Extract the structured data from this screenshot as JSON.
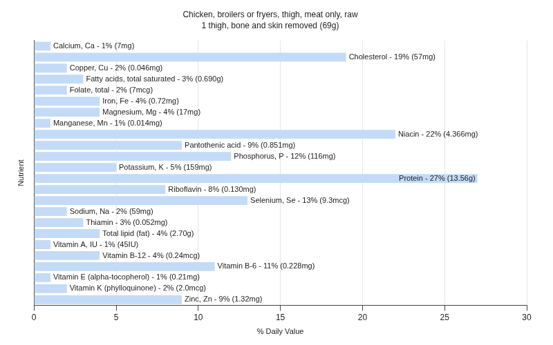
{
  "chart_data": {
    "type": "bar",
    "orientation": "horizontal",
    "title": "Chicken, broilers or fryers, thigh, meat only, raw",
    "subtitle": "1 thigh, bone and skin removed (69g)",
    "x_label": "% Daily Value",
    "y_label": "Nutrient",
    "categories": [
      null,
      null,
      null,
      null,
      null,
      null,
      null,
      null,
      null,
      null,
      null,
      null,
      null,
      null,
      null,
      null,
      null,
      null,
      null,
      null,
      null,
      null,
      null,
      null
    ],
    "values": [
      1,
      19,
      2,
      3,
      2,
      4,
      4,
      1,
      22,
      9,
      12,
      5,
      27,
      8,
      13,
      2,
      3,
      4,
      1,
      4,
      11,
      1,
      2,
      9
    ],
    "value_labels": [
      "Calcium, Ca - 1% (7mg)",
      "Cholesterol - 19% (57mg)",
      "Copper, Cu - 2% (0.046mg)",
      "Fatty acids, total saturated - 3% (0.690g)",
      "Folate, total - 2% (7mcg)",
      "Iron, Fe - 4% (0.72mg)",
      "Magnesium, Mg - 4% (17mg)",
      "Manganese, Mn - 1% (0.014mg)",
      "Niacin - 22% (4.366mg)",
      "Pantothenic acid - 9% (0.851mg)",
      "Phosphorus, P - 12% (116mg)",
      "Potassium, K - 5% (159mg)",
      "Protein - 27% (13.56g)",
      "Riboflavin - 8% (0.130mg)",
      "Selenium, Se - 13% (9.3mcg)",
      "Sodium, Na - 2% (59mg)",
      "Thiamin - 3% (0.052mg)",
      "Total lipid (fat) - 4% (2.70g)",
      "Vitamin A, IU - 1% (45IU)",
      "Vitamin B-12 - 4% (0.24mcg)",
      "Vitamin B-6 - 11% (0.228mg)",
      "Vitamin E (alpha-tocopherol) - 1% (0.21mg)",
      "Vitamin K (phylloquinone) - 2% (2.0mcg)",
      "Zinc, Zn - 9% (1.32mg)"
    ],
    "color": "#c3dbf6",
    "xlim": [
      0,
      30
    ],
    "xticks": [
      0,
      5,
      10,
      15,
      20,
      25,
      30
    ],
    "grid": true,
    "data_labels": true,
    "tick_labels": "x"
  }
}
